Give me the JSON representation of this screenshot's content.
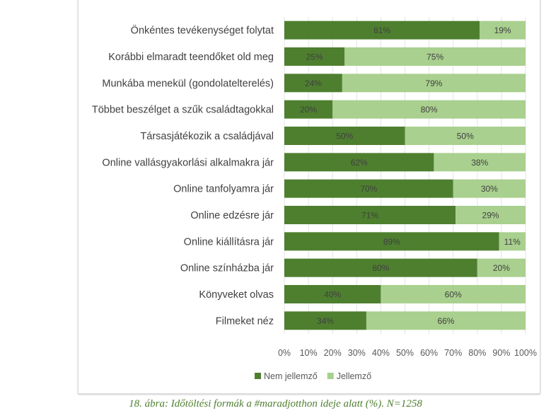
{
  "chart_data": {
    "type": "bar",
    "orientation": "horizontal",
    "stacked": true,
    "categories": [
      "Önkéntes tevékenységet folytat",
      "Korábbi elmaradt teendőket old meg",
      "Munkába menekül (gondolatelterelés)",
      "Többet beszélget a szűk családtagokkal",
      "Társasjátékozik a családjával",
      "Online vallásgyakorlási alkalmakra jár",
      "Online tanfolyamra jár",
      "Online edzésre jár",
      "Online kiállításra jár",
      "Online színházba jár",
      "Könyveket olvas",
      "Filmeket néz"
    ],
    "series": [
      {
        "name": "Nem jellemző",
        "color": "#4e7f2f",
        "values": [
          81,
          25,
          24,
          20,
          50,
          62,
          70,
          71,
          89,
          80,
          40,
          34
        ]
      },
      {
        "name": "Jellemző",
        "color": "#a9d08e",
        "values": [
          19,
          75,
          79,
          80,
          50,
          38,
          30,
          29,
          11,
          20,
          60,
          66
        ]
      }
    ],
    "xlim": [
      0,
      100
    ],
    "xticks": [
      "0%",
      "10%",
      "20%",
      "30%",
      "40%",
      "50%",
      "60%",
      "70%",
      "80%",
      "90%",
      "100%"
    ],
    "grid": true,
    "legend": "bottom"
  },
  "caption": "18. ábra: Időtöltési formák a #maradjotthon ideje alatt (%). N=1258"
}
